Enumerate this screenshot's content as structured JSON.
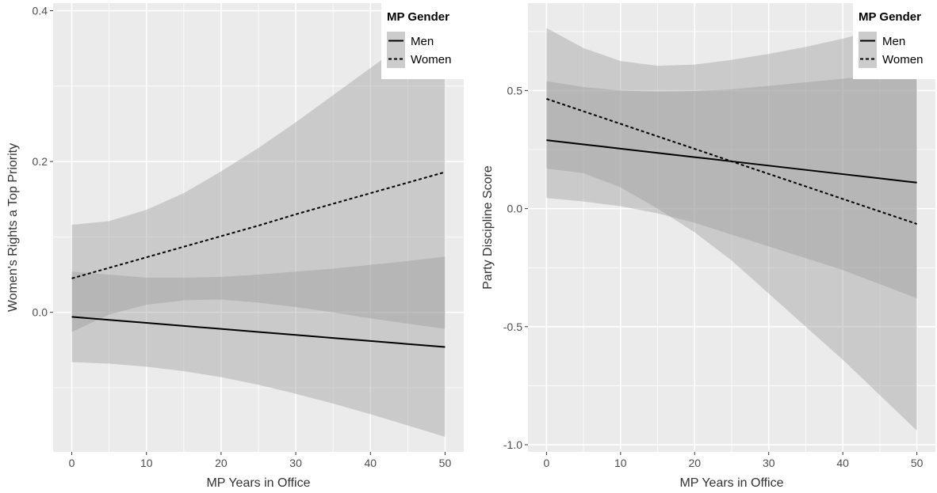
{
  "chart_data": [
    {
      "type": "line",
      "xlabel": "MP Years in Office",
      "ylabel": "Women's Rights a Top Priority",
      "xlim": [
        -2.5,
        52.5
      ],
      "ylim": [
        -0.185,
        0.41
      ],
      "x_ticks": [
        0,
        10,
        20,
        30,
        40,
        50
      ],
      "x_tick_labels": [
        "0",
        "10",
        "20",
        "30",
        "40",
        "50"
      ],
      "x_minor_ticks": [
        5,
        15,
        25,
        35,
        45
      ],
      "y_ticks": [
        0.0,
        0.2,
        0.4
      ],
      "y_tick_labels": [
        "0.0",
        "0.2",
        "0.4"
      ],
      "y_minor_ticks": [
        -0.1,
        0.1,
        0.3
      ],
      "x": [
        0,
        5,
        10,
        15,
        20,
        25,
        30,
        35,
        40,
        45,
        50
      ],
      "series": [
        {
          "name": "Men",
          "line_style": "solid",
          "values": [
            -0.006,
            -0.01,
            -0.014,
            -0.018,
            -0.022,
            -0.026,
            -0.03,
            -0.034,
            -0.038,
            -0.042,
            -0.046
          ],
          "lower": [
            -0.066,
            -0.068,
            -0.072,
            -0.078,
            -0.086,
            -0.096,
            -0.108,
            -0.121,
            -0.135,
            -0.15,
            -0.165
          ],
          "upper": [
            0.054,
            0.05,
            0.046,
            0.046,
            0.047,
            0.05,
            0.054,
            0.058,
            0.063,
            0.068,
            0.074
          ]
        },
        {
          "name": "Women",
          "line_style": "dashed",
          "values": [
            0.045,
            0.059,
            0.073,
            0.087,
            0.101,
            0.115,
            0.13,
            0.144,
            0.158,
            0.172,
            0.186
          ],
          "lower": [
            -0.026,
            -0.003,
            0.01,
            0.016,
            0.017,
            0.013,
            0.007,
            0.0,
            -0.008,
            -0.015,
            -0.022
          ],
          "upper": [
            0.116,
            0.121,
            0.136,
            0.158,
            0.187,
            0.218,
            0.252,
            0.288,
            0.324,
            0.36,
            0.396
          ]
        }
      ],
      "legend": {
        "title": "MP Gender",
        "entries": [
          "Men",
          "Women"
        ],
        "position": "top-right"
      },
      "grid": true
    },
    {
      "type": "line",
      "xlabel": "MP Years in Office",
      "ylabel": "Party Discipline Score",
      "xlim": [
        -2.5,
        52.5
      ],
      "ylim": [
        -1.03,
        0.87
      ],
      "x_ticks": [
        0,
        10,
        20,
        30,
        40,
        50
      ],
      "x_tick_labels": [
        "0",
        "10",
        "20",
        "30",
        "40",
        "50"
      ],
      "x_minor_ticks": [
        5,
        15,
        25,
        35,
        45
      ],
      "y_ticks": [
        -1.0,
        -0.5,
        0.0,
        0.5
      ],
      "y_tick_labels": [
        "-1.0",
        "-0.5",
        "0.0",
        "0.5"
      ],
      "y_minor_ticks": [
        -0.75,
        -0.25,
        0.25,
        0.75
      ],
      "x": [
        0,
        5,
        10,
        15,
        20,
        25,
        30,
        35,
        40,
        45,
        50
      ],
      "series": [
        {
          "name": "Men",
          "line_style": "solid",
          "values": [
            0.29,
            0.272,
            0.254,
            0.236,
            0.218,
            0.2,
            0.182,
            0.164,
            0.146,
            0.128,
            0.11
          ],
          "lower": [
            0.17,
            0.15,
            0.09,
            0.0,
            -0.1,
            -0.22,
            -0.36,
            -0.5,
            -0.64,
            -0.79,
            -0.94
          ],
          "upper": [
            0.54,
            0.515,
            0.5,
            0.495,
            0.498,
            0.505,
            0.52,
            0.535,
            0.55,
            0.565,
            0.58
          ]
        },
        {
          "name": "Women",
          "line_style": "dashed",
          "values": [
            0.465,
            0.412,
            0.359,
            0.306,
            0.253,
            0.2,
            0.147,
            0.094,
            0.041,
            -0.012,
            -0.065
          ],
          "lower": [
            0.045,
            0.03,
            0.01,
            -0.02,
            -0.06,
            -0.11,
            -0.16,
            -0.21,
            -0.26,
            -0.32,
            -0.38
          ],
          "upper": [
            0.765,
            0.68,
            0.625,
            0.605,
            0.61,
            0.63,
            0.655,
            0.685,
            0.72,
            0.76,
            0.8
          ]
        }
      ],
      "legend": {
        "title": "MP Gender",
        "entries": [
          "Men",
          "Women"
        ],
        "position": "top-right"
      },
      "grid": true
    }
  ]
}
